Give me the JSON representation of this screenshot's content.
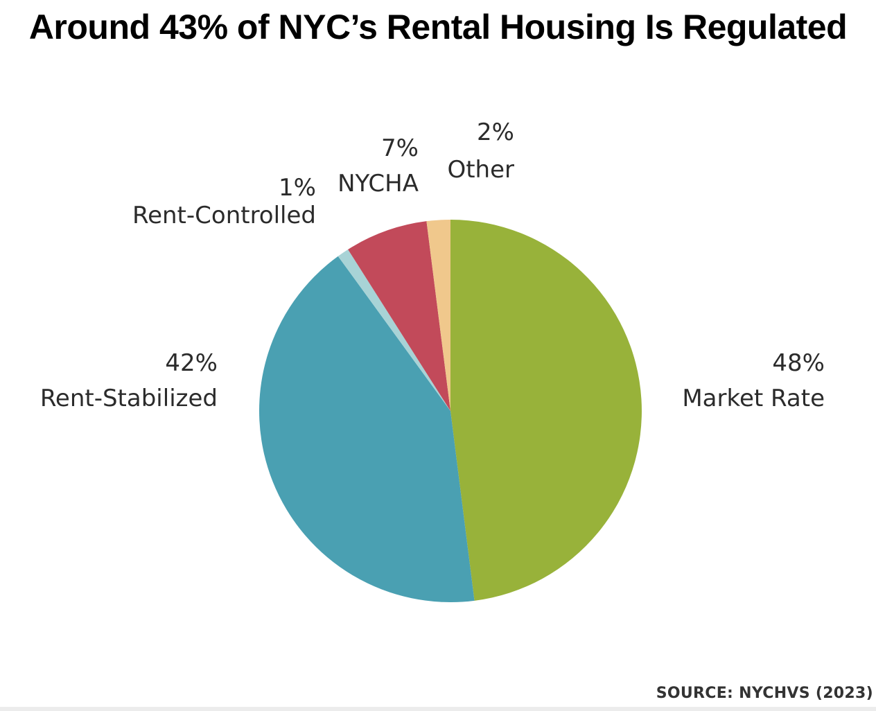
{
  "chart_data": {
    "type": "pie",
    "title": "Around 43% of NYC’s Rental Housing Is Regulated",
    "source": "SOURCE: NYCHVS (2023)",
    "slices": [
      {
        "label": "Market Rate",
        "value": 48,
        "value_label": "48%",
        "color": "#98b23a"
      },
      {
        "label": "Rent-Stabilized",
        "value": 42,
        "value_label": "42%",
        "color": "#4aa0b2"
      },
      {
        "label": "Rent-Controlled",
        "value": 1,
        "value_label": "1%",
        "color": "#a8d3d6"
      },
      {
        "label": "NYCHA",
        "value": 7,
        "value_label": "7%",
        "color": "#c24a5a"
      },
      {
        "label": "Other",
        "value": 2,
        "value_label": "2%",
        "color": "#f0c88c"
      }
    ]
  }
}
